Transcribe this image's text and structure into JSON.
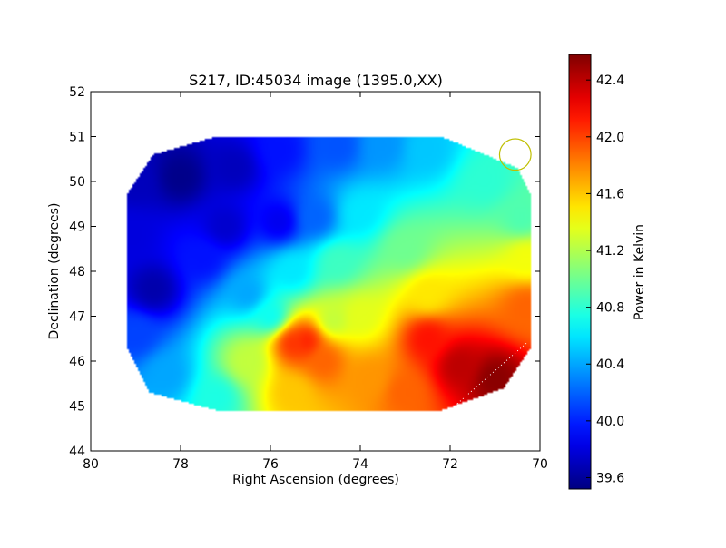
{
  "chart_data": {
    "type": "heatmap",
    "title": "S217, ID:45034 image (1395.0,XX)",
    "xlabel": "Right Ascension (degrees)",
    "ylabel": "Declination (degrees)",
    "xlim": [
      80,
      70
    ],
    "ylim": [
      44,
      52
    ],
    "xticks": [
      "80",
      "78",
      "76",
      "74",
      "72",
      "70"
    ],
    "yticks": [
      "44",
      "45",
      "46",
      "47",
      "48",
      "49",
      "50",
      "51",
      "52"
    ],
    "colorbar": {
      "label": "Power in Kelvin",
      "range": [
        39.52,
        42.58
      ],
      "colormap": "jet",
      "ticks": [
        "39.6",
        "40.0",
        "40.4",
        "40.8",
        "41.2",
        "41.6",
        "42.0",
        "42.4"
      ]
    },
    "map_region_ra_dec": [
      [
        77.2,
        51.0
      ],
      [
        72.2,
        51.0
      ],
      [
        70.5,
        50.3
      ],
      [
        70.2,
        49.7
      ],
      [
        70.2,
        46.3
      ],
      [
        70.8,
        45.4
      ],
      [
        72.2,
        44.9
      ],
      [
        77.2,
        44.9
      ],
      [
        78.7,
        45.3
      ],
      [
        79.2,
        46.3
      ],
      [
        79.2,
        49.7
      ],
      [
        78.6,
        50.6
      ]
    ],
    "field_samples": [
      {
        "ra": 78.0,
        "dec": 50.1,
        "value": 39.55
      },
      {
        "ra": 79.0,
        "dec": 50.0,
        "value": 39.7
      },
      {
        "ra": 76.8,
        "dec": 50.3,
        "value": 39.7
      },
      {
        "ra": 75.8,
        "dec": 50.7,
        "value": 39.95
      },
      {
        "ra": 74.5,
        "dec": 50.8,
        "value": 40.15
      },
      {
        "ra": 73.5,
        "dec": 50.8,
        "value": 40.35
      },
      {
        "ra": 72.5,
        "dec": 50.7,
        "value": 40.5
      },
      {
        "ra": 71.2,
        "dec": 50.0,
        "value": 40.8
      },
      {
        "ra": 70.4,
        "dec": 49.2,
        "value": 40.9
      },
      {
        "ra": 70.3,
        "dec": 48.3,
        "value": 41.4
      },
      {
        "ra": 70.3,
        "dec": 47.2,
        "value": 41.9
      },
      {
        "ra": 71.0,
        "dec": 45.6,
        "value": 42.55
      },
      {
        "ra": 71.8,
        "dec": 45.9,
        "value": 42.4
      },
      {
        "ra": 72.5,
        "dec": 46.5,
        "value": 42.15
      },
      {
        "ra": 73.0,
        "dec": 45.3,
        "value": 41.9
      },
      {
        "ra": 72.5,
        "dec": 47.5,
        "value": 41.5
      },
      {
        "ra": 73.0,
        "dec": 48.5,
        "value": 41.0
      },
      {
        "ra": 74.0,
        "dec": 49.3,
        "value": 40.6
      },
      {
        "ra": 75.0,
        "dec": 49.2,
        "value": 40.2
      },
      {
        "ra": 75.8,
        "dec": 49.1,
        "value": 39.85
      },
      {
        "ra": 77.0,
        "dec": 49.0,
        "value": 39.75
      },
      {
        "ra": 78.6,
        "dec": 47.6,
        "value": 39.65
      },
      {
        "ra": 79.1,
        "dec": 48.8,
        "value": 39.8
      },
      {
        "ra": 79.0,
        "dec": 46.6,
        "value": 40.1
      },
      {
        "ra": 78.3,
        "dec": 45.7,
        "value": 40.4
      },
      {
        "ra": 77.2,
        "dec": 45.2,
        "value": 40.75
      },
      {
        "ra": 76.5,
        "dec": 46.0,
        "value": 41.25
      },
      {
        "ra": 75.5,
        "dec": 46.4,
        "value": 42.05
      },
      {
        "ra": 75.2,
        "dec": 46.45,
        "value": 42.1
      },
      {
        "ra": 74.8,
        "dec": 46.0,
        "value": 41.9
      },
      {
        "ra": 75.5,
        "dec": 45.3,
        "value": 41.6
      },
      {
        "ra": 74.6,
        "dec": 46.9,
        "value": 41.25
      },
      {
        "ra": 74.0,
        "dec": 47.0,
        "value": 41.35
      },
      {
        "ra": 76.5,
        "dec": 47.5,
        "value": 40.4
      },
      {
        "ra": 77.5,
        "dec": 48.3,
        "value": 39.95
      },
      {
        "ra": 75.5,
        "dec": 48.0,
        "value": 40.6
      },
      {
        "ra": 74.5,
        "dec": 48.2,
        "value": 40.85
      },
      {
        "ra": 73.8,
        "dec": 45.6,
        "value": 41.75
      },
      {
        "ra": 76.0,
        "dec": 47.0,
        "value": 40.7
      }
    ],
    "annotations": {
      "circle": {
        "ra": 70.55,
        "dec": 50.6,
        "radius_deg": 0.35,
        "color": "#bfbf00"
      },
      "dotted_line": {
        "from": [
          71.9,
          45.0
        ],
        "to": [
          70.3,
          46.4
        ],
        "color": "#ffffff"
      }
    },
    "grid": false
  }
}
